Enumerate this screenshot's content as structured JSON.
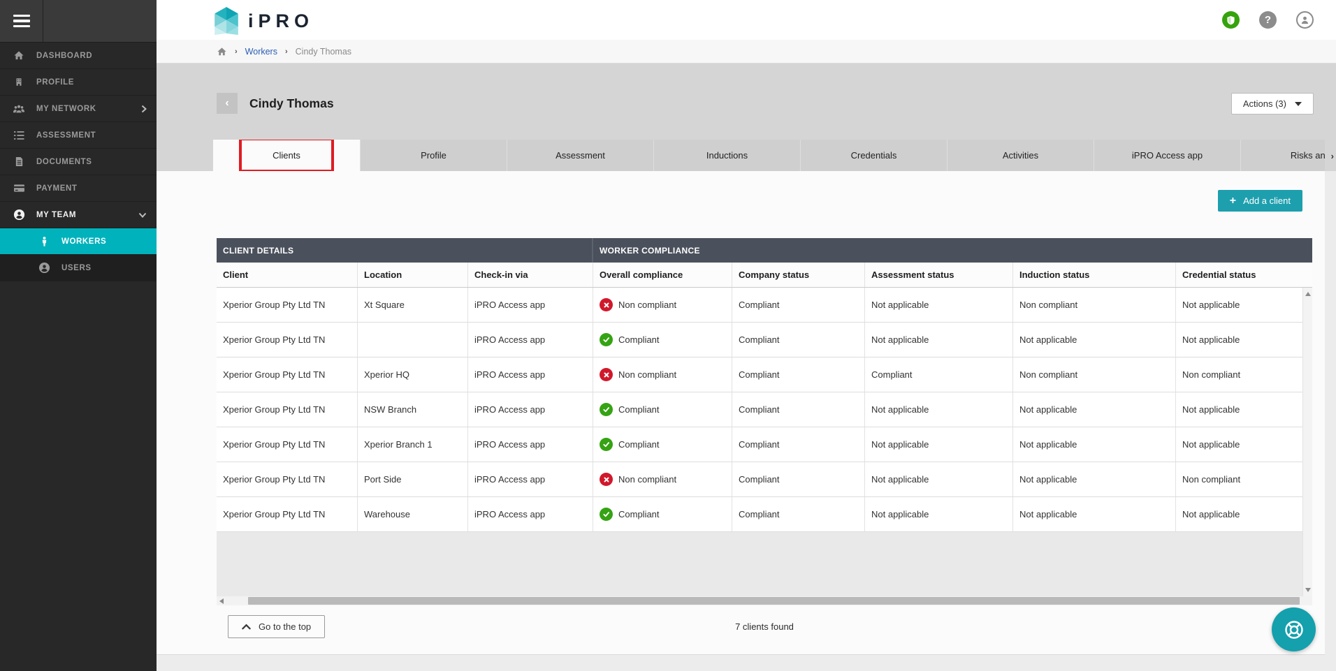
{
  "app": {
    "logo_text": "iPRO"
  },
  "topbar": {
    "icons": [
      {
        "name": "shield-status-icon",
        "style": "shield"
      },
      {
        "name": "help-icon",
        "glyph": "?"
      },
      {
        "name": "account-icon",
        "style": "user"
      }
    ]
  },
  "sidebar": {
    "items": [
      {
        "label": "DASHBOARD",
        "icon": "home-icon"
      },
      {
        "label": "PROFILE",
        "icon": "building-icon"
      },
      {
        "label": "MY NETWORK",
        "icon": "people-group-icon",
        "chevron": "right"
      },
      {
        "label": "ASSESSMENT",
        "icon": "numbered-list-icon"
      },
      {
        "label": "DOCUMENTS",
        "icon": "document-icon"
      },
      {
        "label": "PAYMENT",
        "icon": "credit-card-icon"
      },
      {
        "label": "MY TEAM",
        "icon": "person-circle-icon",
        "chevron": "down",
        "bright": true
      },
      {
        "label": "WORKERS",
        "icon": "worker-icon",
        "child": true,
        "active": true
      },
      {
        "label": "USERS",
        "icon": "user-circle-icon",
        "child": true
      }
    ]
  },
  "breadcrumb": {
    "items": [
      "Workers",
      "Cindy Thomas"
    ]
  },
  "page": {
    "title": "Cindy Thomas",
    "back_glyph": "‹",
    "actions_label": "Actions (3)"
  },
  "tabs": [
    {
      "label": "Clients",
      "active": true,
      "highlighted": true
    },
    {
      "label": "Profile"
    },
    {
      "label": "Assessment"
    },
    {
      "label": "Inductions"
    },
    {
      "label": "Credentials"
    },
    {
      "label": "Activities"
    },
    {
      "label": "iPRO Access app"
    },
    {
      "label": "Risks and c"
    }
  ],
  "tabs_overflow_arrow": "›",
  "toolbar": {
    "add_client_label": "Add a client",
    "add_plus": "+"
  },
  "table": {
    "group_headers": [
      "CLIENT DETAILS",
      "WORKER COMPLIANCE"
    ],
    "columns": [
      "Client",
      "Location",
      "Check-in via",
      "Overall compliance",
      "Company status",
      "Assessment status",
      "Induction status",
      "Credential status"
    ],
    "rows": [
      {
        "client": "Xperior Group Pty Ltd TN",
        "location": "Xt Square",
        "checkin": "iPRO Access app",
        "overall": {
          "label": "Non compliant",
          "status": "bad"
        },
        "company": "Compliant",
        "assessment": "Not applicable",
        "induction": "Non compliant",
        "credential": "Not applicable"
      },
      {
        "client": "Xperior Group Pty Ltd TN",
        "location": "",
        "checkin": "iPRO Access app",
        "overall": {
          "label": "Compliant",
          "status": "ok"
        },
        "company": "Compliant",
        "assessment": "Not applicable",
        "induction": "Not applicable",
        "credential": "Not applicable"
      },
      {
        "client": "Xperior Group Pty Ltd TN",
        "location": "Xperior HQ",
        "checkin": "iPRO Access app",
        "overall": {
          "label": "Non compliant",
          "status": "bad"
        },
        "company": "Compliant",
        "assessment": "Compliant",
        "induction": "Non compliant",
        "credential": "Non compliant"
      },
      {
        "client": "Xperior Group Pty Ltd TN",
        "location": "NSW Branch",
        "checkin": "iPRO Access app",
        "overall": {
          "label": "Compliant",
          "status": "ok"
        },
        "company": "Compliant",
        "assessment": "Not applicable",
        "induction": "Not applicable",
        "credential": "Not applicable"
      },
      {
        "client": "Xperior Group Pty Ltd TN",
        "location": "Xperior Branch 1",
        "checkin": "iPRO Access app",
        "overall": {
          "label": "Compliant",
          "status": "ok"
        },
        "company": "Compliant",
        "assessment": "Not applicable",
        "induction": "Not applicable",
        "credential": "Not applicable"
      },
      {
        "client": "Xperior Group Pty Ltd TN",
        "location": "Port Side",
        "checkin": "iPRO Access app",
        "overall": {
          "label": "Non compliant",
          "status": "bad"
        },
        "company": "Compliant",
        "assessment": "Not applicable",
        "induction": "Not applicable",
        "credential": "Non compliant"
      },
      {
        "client": "Xperior Group Pty Ltd TN",
        "location": "Warehouse",
        "checkin": "iPRO Access app",
        "overall": {
          "label": "Compliant",
          "status": "ok"
        },
        "company": "Compliant",
        "assessment": "Not applicable",
        "induction": "Not applicable",
        "credential": "Not applicable"
      }
    ]
  },
  "footer": {
    "go_top_label": "Go to the top",
    "count_label": "7 clients found"
  },
  "colors": {
    "accent_teal": "#00b2bc",
    "button_teal": "#1e9fae",
    "group_header": "#4b515c",
    "compliant_green": "#35a313",
    "non_compliant_red": "#d1182b",
    "highlight_red": "#e01b22",
    "link_blue": "#2a5db4"
  }
}
